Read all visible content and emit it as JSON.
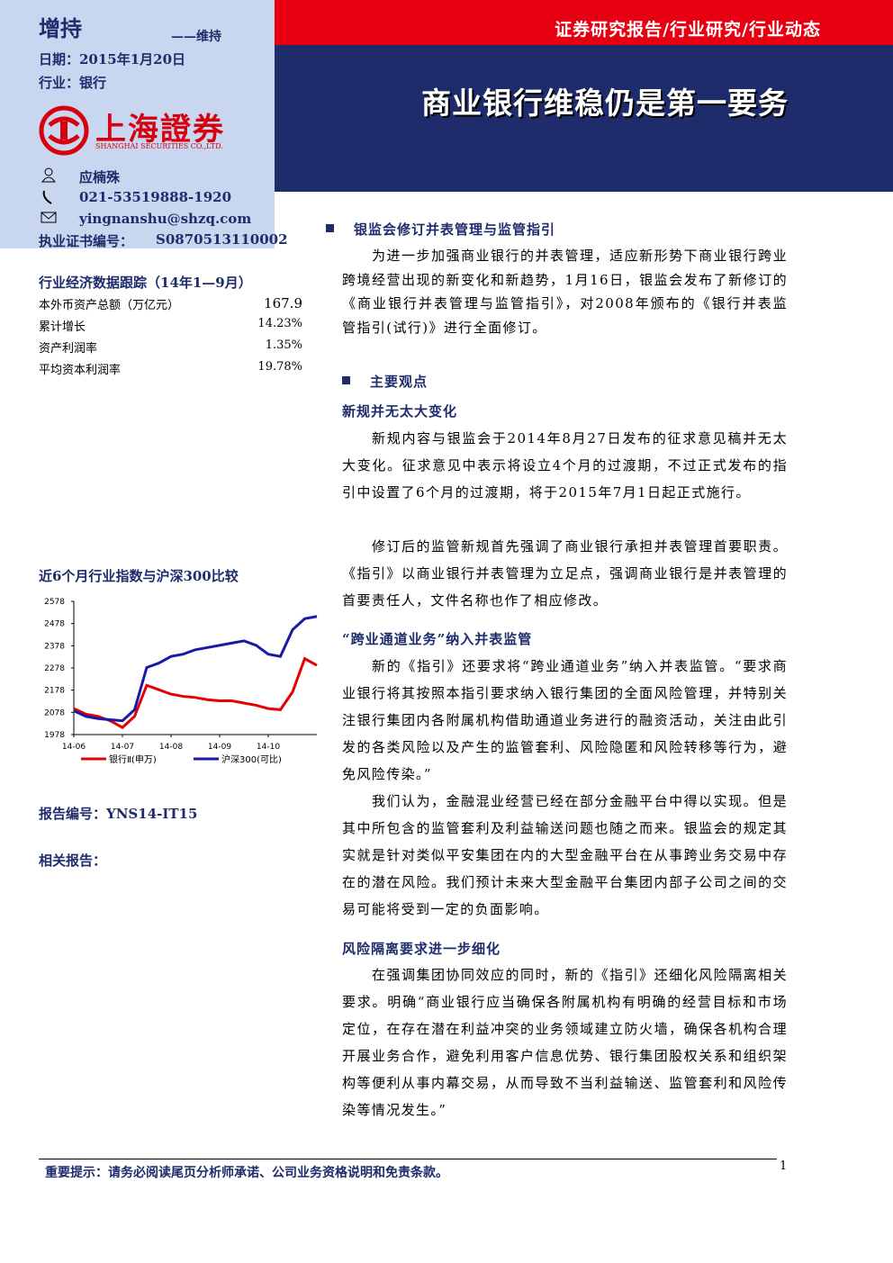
{
  "header": {
    "rating": "增持",
    "rating_prev": "——维持",
    "category": "证券研究报告/行业研究/行业动态",
    "date": "日期：2015年1月20日",
    "industry": "行业：银行",
    "title": "商业银行维稳仍是第一要务",
    "logo_cn": "上海證券",
    "logo_en": "SHANGHAI SECURITIES CO.,LTD."
  },
  "analyst": {
    "name": "应楠殊",
    "phone": "021-53519888-1920",
    "email": "yingnanshu@shzq.com",
    "cert_label": "执业证书编号：",
    "cert_no": "S0870513110002"
  },
  "stats": {
    "title": "行业经济数据跟踪（14年1—9月）",
    "rows": [
      [
        "本外币资产总额（万亿元）",
        "167.9"
      ],
      [
        "累计增长",
        "14.23%"
      ],
      [
        "资产利润率",
        "1.35%"
      ],
      [
        "平均资本利润率",
        "19.78%"
      ]
    ]
  },
  "chart_data": {
    "type": "line",
    "title": "近6个月行业指数与沪深300比较",
    "categories": [
      "14-06",
      null,
      null,
      null,
      "14-07",
      null,
      null,
      null,
      "14-08",
      null,
      null,
      null,
      "14-09",
      null,
      null,
      null,
      "14-10",
      null,
      null,
      null,
      null
    ],
    "series": [
      {
        "name": "银行Ⅱ(申万)",
        "color": "#e60000",
        "values": [
          2095,
          2070,
          2060,
          2040,
          2010,
          2060,
          2200,
          2180,
          2160,
          2150,
          2145,
          2135,
          2130,
          2130,
          2120,
          2110,
          2095,
          2090,
          2170,
          2320,
          2290
        ]
      },
      {
        "name": "沪深300(可比)",
        "color": "#1a1aa6",
        "values": [
          2085,
          2060,
          2050,
          2045,
          2040,
          2090,
          2280,
          2300,
          2330,
          2340,
          2360,
          2370,
          2380,
          2390,
          2400,
          2380,
          2340,
          2330,
          2450,
          2500,
          2510
        ]
      }
    ],
    "ylim": [
      1978,
      2578
    ],
    "yticks": [
      1978,
      2078,
      2178,
      2278,
      2378,
      2478,
      2578
    ]
  },
  "report_no": "报告编号：YNS14-IT15",
  "related": "相关报告：",
  "sections": [
    {
      "heading": "银监会修订并表管理与监管指引",
      "paragraphs": [
        "为进一步加强商业银行的并表管理，适应新形势下商业银行跨业跨境经营出现的新变化和新趋势，1月16日，银监会发布了新修订的《商业银行并表管理与监管指引》，对2008年颁布的《银行并表监管指引(试行)》进行全面修订。"
      ]
    },
    {
      "heading": "主要观点",
      "subsections": [
        {
          "heading": "新规并无太大变化",
          "paragraphs": [
            "新规内容与银监会于2014年8月27日发布的征求意见稿并无太大变化。征求意见中表示将设立4个月的过渡期，不过正式发布的指引中设置了6个月的过渡期，将于2015年7月1日起正式施行。",
            "修订后的监管新规首先强调了商业银行承担并表管理首要职责。《指引》以商业银行并表管理为立足点，强调商业银行是并表管理的首要责任人，文件名称也作了相应修改。"
          ]
        },
        {
          "heading": "“跨业通道业务”纳入并表监管",
          "paragraphs": [
            "新的《指引》还要求将“跨业通道业务”纳入并表监管。“要求商业银行将其按照本指引要求纳入银行集团的全面风险管理，并特别关注银行集团内各附属机构借助通道业务进行的融资活动，关注由此引发的各类风险以及产生的监管套利、风险隐匿和风险转移等行为，避免风险传染。”",
            "我们认为，金融混业经营已经在部分金融平台中得以实现。但是其中所包含的监管套利及利益输送问题也随之而来。银监会的规定其实就是针对类似平安集团在内的大型金融平台在从事跨业务交易中存在的潜在风险。我们预计未来大型金融平台集团内部子公司之间的交易可能将受到一定的负面影响。"
          ]
        },
        {
          "heading": "风险隔离要求进一步细化",
          "paragraphs": [
            "在强调集团协同效应的同时，新的《指引》还细化风险隔离相关要求。明确“商业银行应当确保各附属机构有明确的经营目标和市场定位，在存在潜在利益冲突的业务领域建立防火墙，确保各机构合理开展业务合作，避免利用客户信息优势、银行集团股权关系和组织架构等便利从事内幕交易，从而导致不当利益输送、监管套利和风险传染等情况发生。”"
          ]
        }
      ]
    }
  ],
  "footer": {
    "notice": "重要提示：请务必阅读尾页分析师承诺、公司业务资格说明和免责条款。",
    "page": "1"
  }
}
